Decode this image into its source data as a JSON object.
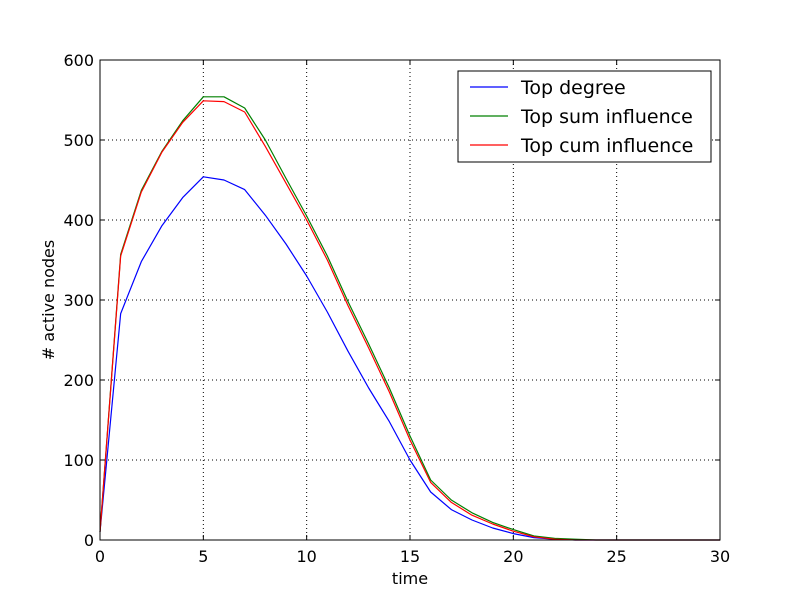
{
  "chart_data": {
    "type": "line",
    "title": "",
    "xlabel": "time",
    "ylabel": "# active nodes",
    "xlim": [
      0,
      30
    ],
    "ylim": [
      0,
      600
    ],
    "x_ticks": [
      "0",
      "5",
      "10",
      "15",
      "20",
      "25",
      "30"
    ],
    "y_ticks": [
      "0",
      "100",
      "200",
      "300",
      "400",
      "500",
      "600"
    ],
    "grid": true,
    "legend_position": "top-right",
    "x": [
      0,
      1,
      2,
      3,
      4,
      5,
      6,
      7,
      8,
      9,
      10,
      11,
      12,
      13,
      14,
      15,
      16,
      17,
      18,
      19,
      20,
      21,
      22,
      23,
      24,
      25,
      26,
      27,
      28,
      29,
      30
    ],
    "series": [
      {
        "name": "Top degree",
        "color": "#0000ff",
        "values": [
          10,
          283,
          348,
          393,
          428,
          454,
          450,
          438,
          406,
          370,
          330,
          285,
          236,
          190,
          148,
          100,
          60,
          38,
          25,
          15,
          8,
          3,
          1,
          0,
          0,
          0,
          0,
          0,
          0,
          0,
          0
        ]
      },
      {
        "name": "Top sum influence",
        "color": "#008000",
        "values": [
          10,
          357,
          437,
          486,
          524,
          554,
          554,
          540,
          500,
          452,
          405,
          355,
          298,
          245,
          190,
          130,
          75,
          50,
          34,
          22,
          13,
          5,
          2,
          1,
          0,
          0,
          0,
          0,
          0,
          0,
          0
        ]
      },
      {
        "name": "Top cum influence",
        "color": "#ff0000",
        "values": [
          10,
          355,
          435,
          485,
          522,
          549,
          548,
          535,
          492,
          446,
          400,
          350,
          293,
          240,
          185,
          125,
          72,
          47,
          31,
          20,
          11,
          4,
          1,
          0,
          0,
          0,
          0,
          0,
          0,
          0,
          0
        ]
      }
    ]
  }
}
